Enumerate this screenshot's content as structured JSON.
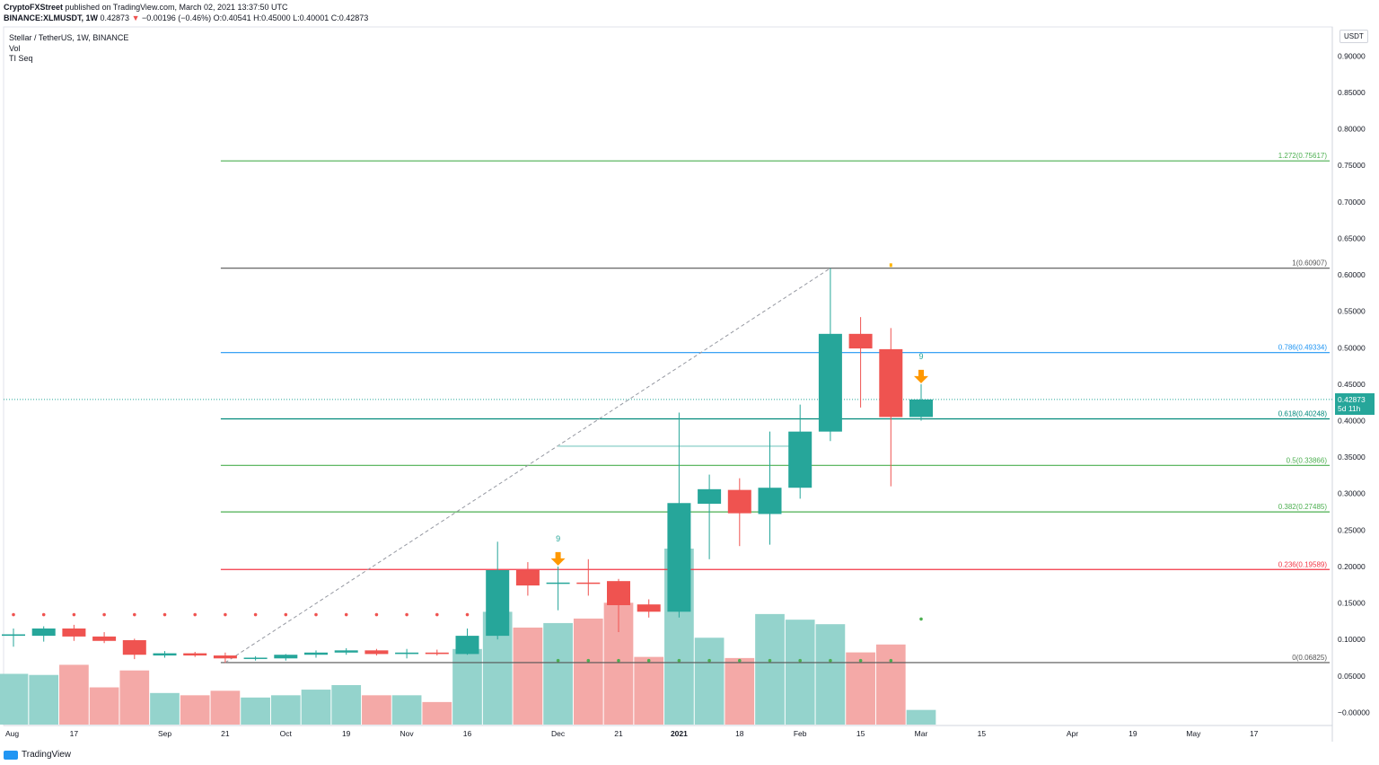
{
  "header": {
    "publisher": "CryptoFXStreet",
    "published_text": "published on TradingView.com, March 02, 2021 13:37:50 UTC",
    "symbol_line": "BINANCE:XLMUSDT, 1W",
    "last": "0.42873",
    "change": "−0.00196 (−0.46%)",
    "ohlc_text": "O:0.40541 H:0.45000 L:0.40001 C:0.42873"
  },
  "legend": {
    "title": "Stellar / TetherUS, 1W, BINANCE",
    "vol": "Vol",
    "tiseq": "TI Seq"
  },
  "currency": "USDT",
  "price_badge": {
    "price": "0.42873",
    "countdown": "5d 11h"
  },
  "footer": {
    "brand": "TradingView"
  },
  "colors": {
    "up": "#26a69a",
    "down": "#ef5350",
    "vol_up": "#94d3cc",
    "vol_down": "#f4a9a7",
    "fib_green": "#4caf50",
    "fib_blue": "#2196f3",
    "fib_teal": "#00897b",
    "fib_red": "#f23645",
    "fib_gray": "#555555",
    "arrow": "#ff9800"
  },
  "chart_data": {
    "type": "candlestick",
    "interval": "1W",
    "y_axis_ticks": [
      "0.90000",
      "0.85000",
      "0.80000",
      "0.75000",
      "0.70000",
      "0.65000",
      "0.60000",
      "0.55000",
      "0.50000",
      "0.45000",
      "0.40000",
      "0.35000",
      "0.30000",
      "0.25000",
      "0.20000",
      "0.15000",
      "0.10000",
      "0.05000",
      "−0.00000"
    ],
    "ylim": [
      -0.018,
      0.93
    ],
    "x_axis_labels": [
      {
        "label": "Aug",
        "idx": 0
      },
      {
        "label": "17",
        "idx": 2
      },
      {
        "label": "Sep",
        "idx": 5
      },
      {
        "label": "21",
        "idx": 7
      },
      {
        "label": "Oct",
        "idx": 9
      },
      {
        "label": "19",
        "idx": 11
      },
      {
        "label": "Nov",
        "idx": 13
      },
      {
        "label": "16",
        "idx": 15
      },
      {
        "label": "Dec",
        "idx": 18
      },
      {
        "label": "21",
        "idx": 20
      },
      {
        "label": "2021",
        "idx": 22
      },
      {
        "label": "18",
        "idx": 24
      },
      {
        "label": "Feb",
        "idx": 26
      },
      {
        "label": "15",
        "idx": 28
      },
      {
        "label": "Mar",
        "idx": 30
      },
      {
        "label": "15",
        "idx": 32
      },
      {
        "label": "Apr",
        "idx": 35
      },
      {
        "label": "19",
        "idx": 37
      },
      {
        "label": "May",
        "idx": 39
      },
      {
        "label": "17",
        "idx": 41
      }
    ],
    "candles": [
      {
        "o": 0.105,
        "h": 0.115,
        "l": 0.09,
        "c": 0.107
      },
      {
        "o": 0.105,
        "h": 0.118,
        "l": 0.097,
        "c": 0.115
      },
      {
        "o": 0.115,
        "h": 0.12,
        "l": 0.098,
        "c": 0.104
      },
      {
        "o": 0.104,
        "h": 0.11,
        "l": 0.095,
        "c": 0.098
      },
      {
        "o": 0.099,
        "h": 0.101,
        "l": 0.073,
        "c": 0.079
      },
      {
        "o": 0.078,
        "h": 0.084,
        "l": 0.075,
        "c": 0.081
      },
      {
        "o": 0.081,
        "h": 0.083,
        "l": 0.076,
        "c": 0.078
      },
      {
        "o": 0.078,
        "h": 0.082,
        "l": 0.068,
        "c": 0.074
      },
      {
        "o": 0.074,
        "h": 0.077,
        "l": 0.071,
        "c": 0.075
      },
      {
        "o": 0.074,
        "h": 0.08,
        "l": 0.071,
        "c": 0.079
      },
      {
        "o": 0.079,
        "h": 0.085,
        "l": 0.075,
        "c": 0.082
      },
      {
        "o": 0.082,
        "h": 0.088,
        "l": 0.079,
        "c": 0.085
      },
      {
        "o": 0.085,
        "h": 0.087,
        "l": 0.078,
        "c": 0.08
      },
      {
        "o": 0.08,
        "h": 0.087,
        "l": 0.074,
        "c": 0.082
      },
      {
        "o": 0.082,
        "h": 0.086,
        "l": 0.078,
        "c": 0.08
      },
      {
        "o": 0.08,
        "h": 0.115,
        "l": 0.079,
        "c": 0.105
      },
      {
        "o": 0.105,
        "h": 0.234,
        "l": 0.1,
        "c": 0.195
      },
      {
        "o": 0.195,
        "h": 0.206,
        "l": 0.16,
        "c": 0.174
      },
      {
        "o": 0.178,
        "h": 0.2,
        "l": 0.14,
        "c": 0.178
      },
      {
        "o": 0.178,
        "h": 0.21,
        "l": 0.16,
        "c": 0.177
      },
      {
        "o": 0.18,
        "h": 0.183,
        "l": 0.11,
        "c": 0.147
      },
      {
        "o": 0.148,
        "h": 0.155,
        "l": 0.13,
        "c": 0.138
      },
      {
        "o": 0.138,
        "h": 0.411,
        "l": 0.13,
        "c": 0.287
      },
      {
        "o": 0.286,
        "h": 0.326,
        "l": 0.21,
        "c": 0.306
      },
      {
        "o": 0.305,
        "h": 0.321,
        "l": 0.228,
        "c": 0.273
      },
      {
        "o": 0.272,
        "h": 0.385,
        "l": 0.23,
        "c": 0.308
      },
      {
        "o": 0.308,
        "h": 0.422,
        "l": 0.293,
        "c": 0.385
      },
      {
        "o": 0.385,
        "h": 0.609,
        "l": 0.372,
        "c": 0.519
      },
      {
        "o": 0.519,
        "h": 0.542,
        "l": 0.418,
        "c": 0.499
      },
      {
        "o": 0.498,
        "h": 0.527,
        "l": 0.31,
        "c": 0.405
      },
      {
        "o": 0.405,
        "h": 0.45,
        "l": 0.4,
        "c": 0.429
      }
    ],
    "volume": [
      0.45,
      0.44,
      0.53,
      0.33,
      0.48,
      0.28,
      0.26,
      0.3,
      0.24,
      0.26,
      0.31,
      0.35,
      0.26,
      0.26,
      0.2,
      0.67,
      1.0,
      0.86,
      0.9,
      0.94,
      1.08,
      0.6,
      1.56,
      0.77,
      0.59,
      0.98,
      0.93,
      0.89,
      0.64,
      0.71,
      0.13
    ],
    "fib_levels": [
      {
        "ratio": "1.272",
        "value": 0.75617,
        "label": "1.272(0.75617)",
        "color": "#4caf50"
      },
      {
        "ratio": "1",
        "value": 0.60907,
        "label": "1(0.60907)",
        "color": "#555555"
      },
      {
        "ratio": "0.786",
        "value": 0.49334,
        "label": "0.786(0.49334)",
        "color": "#2196f3"
      },
      {
        "ratio": "0.618",
        "value": 0.40248,
        "label": "0.618(0.40248)",
        "color": "#00897b"
      },
      {
        "ratio": "0.5",
        "value": 0.33866,
        "label": "0.5(0.33866)",
        "color": "#4caf50"
      },
      {
        "ratio": "0.382",
        "value": 0.27485,
        "label": "0.382(0.27485)",
        "color": "#4caf50"
      },
      {
        "ratio": "0.236",
        "value": 0.19589,
        "label": "0.236(0.19589)",
        "color": "#f23645"
      },
      {
        "ratio": "0",
        "value": 0.06825,
        "label": "0(0.06825)",
        "color": "#555555"
      }
    ],
    "fib_start_idx": 7,
    "fib_end_idx": 27,
    "tiseq_nines": [
      {
        "idx": 18,
        "label": "9"
      },
      {
        "idx": 30,
        "label": "9"
      }
    ],
    "sell_arrows": [
      18,
      30
    ],
    "red_dots": {
      "idx_range": [
        0,
        15
      ],
      "value": 0.134
    },
    "green_dots": {
      "indices": [
        18,
        19,
        20,
        21,
        22,
        23,
        24,
        25,
        26,
        27,
        28,
        29
      ],
      "value": 0.071
    },
    "green_dot_extra": {
      "idx": 30,
      "value": 0.128
    },
    "small_marker": {
      "idx": 29,
      "value": 0.612
    },
    "support_line": {
      "from_idx": 18,
      "to_idx": 26,
      "value": 0.365
    }
  }
}
